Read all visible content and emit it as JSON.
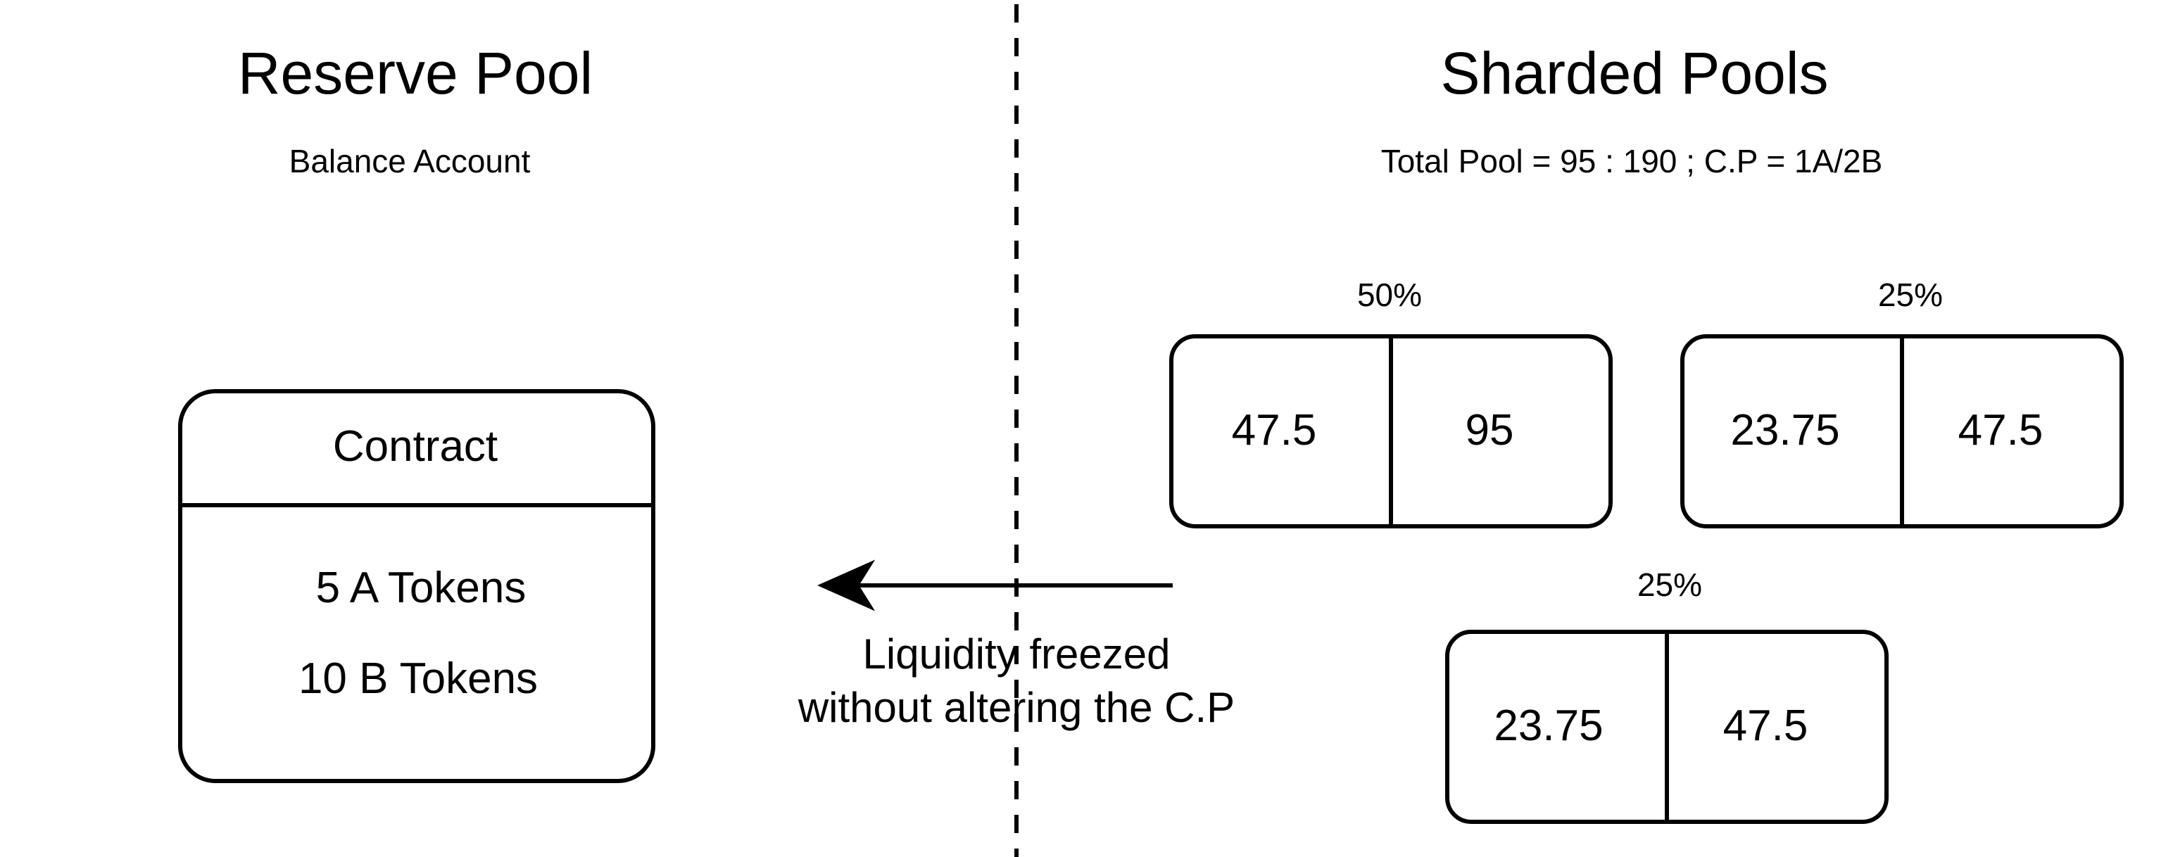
{
  "reserve": {
    "title": "Reserve Pool",
    "subtitle": "Balance Account",
    "contract": {
      "header": "Contract",
      "lines": [
        "5 A Tokens",
        "10 B Tokens"
      ]
    }
  },
  "sharded": {
    "title": "Sharded Pools",
    "subtitle": "Total Pool = 95 : 190 ;  C.P = 1A/2B",
    "pools": [
      {
        "percent": "50%",
        "a": "47.5",
        "b": "95"
      },
      {
        "percent": "25%",
        "a": "23.75",
        "b": "47.5"
      },
      {
        "percent": "25%",
        "a": "23.75",
        "b": "47.5"
      }
    ]
  },
  "arrow": {
    "label_lines": [
      "Liquidity freezed",
      "without altering the C.P"
    ]
  }
}
